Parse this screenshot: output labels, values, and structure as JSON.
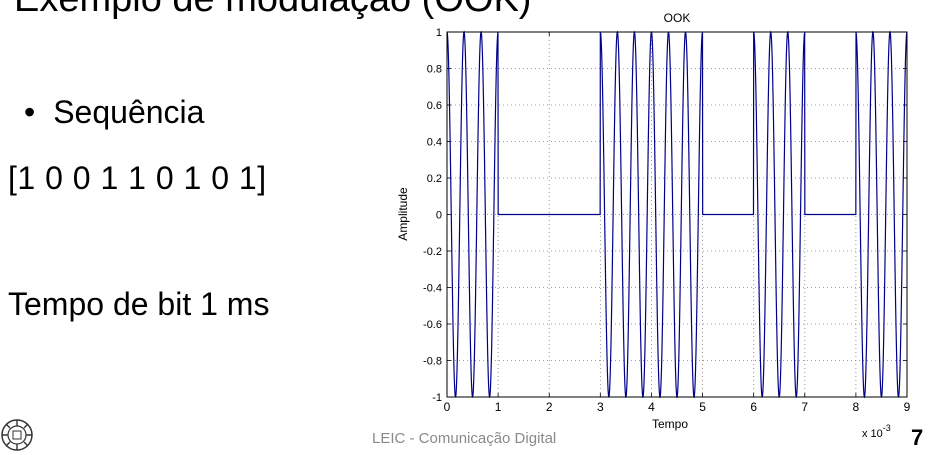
{
  "slide": {
    "title_partial": "Exemplo de modulação (OOK)",
    "bullet": "Sequência",
    "sequence_text": "[1 0 0 1 1 0 1 0 1]",
    "bit_time_text": "Tempo de bit 1 ms",
    "footer": "LEIC - Comunicação Digital",
    "slide_number": "7",
    "logo_icon": "university-seal-icon"
  },
  "chart_data": {
    "type": "line",
    "title": "OOK",
    "xlabel": "Tempo",
    "ylabel": "Amplitude",
    "x_multiplier_label": "x 10",
    "x_multiplier_exponent": "-3",
    "xlim": [
      0,
      9
    ],
    "ylim": [
      -1,
      1
    ],
    "xticks": [
      "0",
      "1",
      "2",
      "3",
      "4",
      "5",
      "6",
      "7",
      "8",
      "9"
    ],
    "yticks": [
      "1",
      "0.8",
      "0.6",
      "0.4",
      "0.2",
      "0",
      "-0.2",
      "-0.4",
      "-0.6",
      "-0.8",
      "-1"
    ],
    "grid": true,
    "bits": [
      1,
      0,
      0,
      1,
      1,
      0,
      1,
      0,
      1
    ],
    "bit_time": 1,
    "carrier_cycles_per_bit": 3,
    "line_color": "#00008b",
    "grid_color": "#808080"
  }
}
